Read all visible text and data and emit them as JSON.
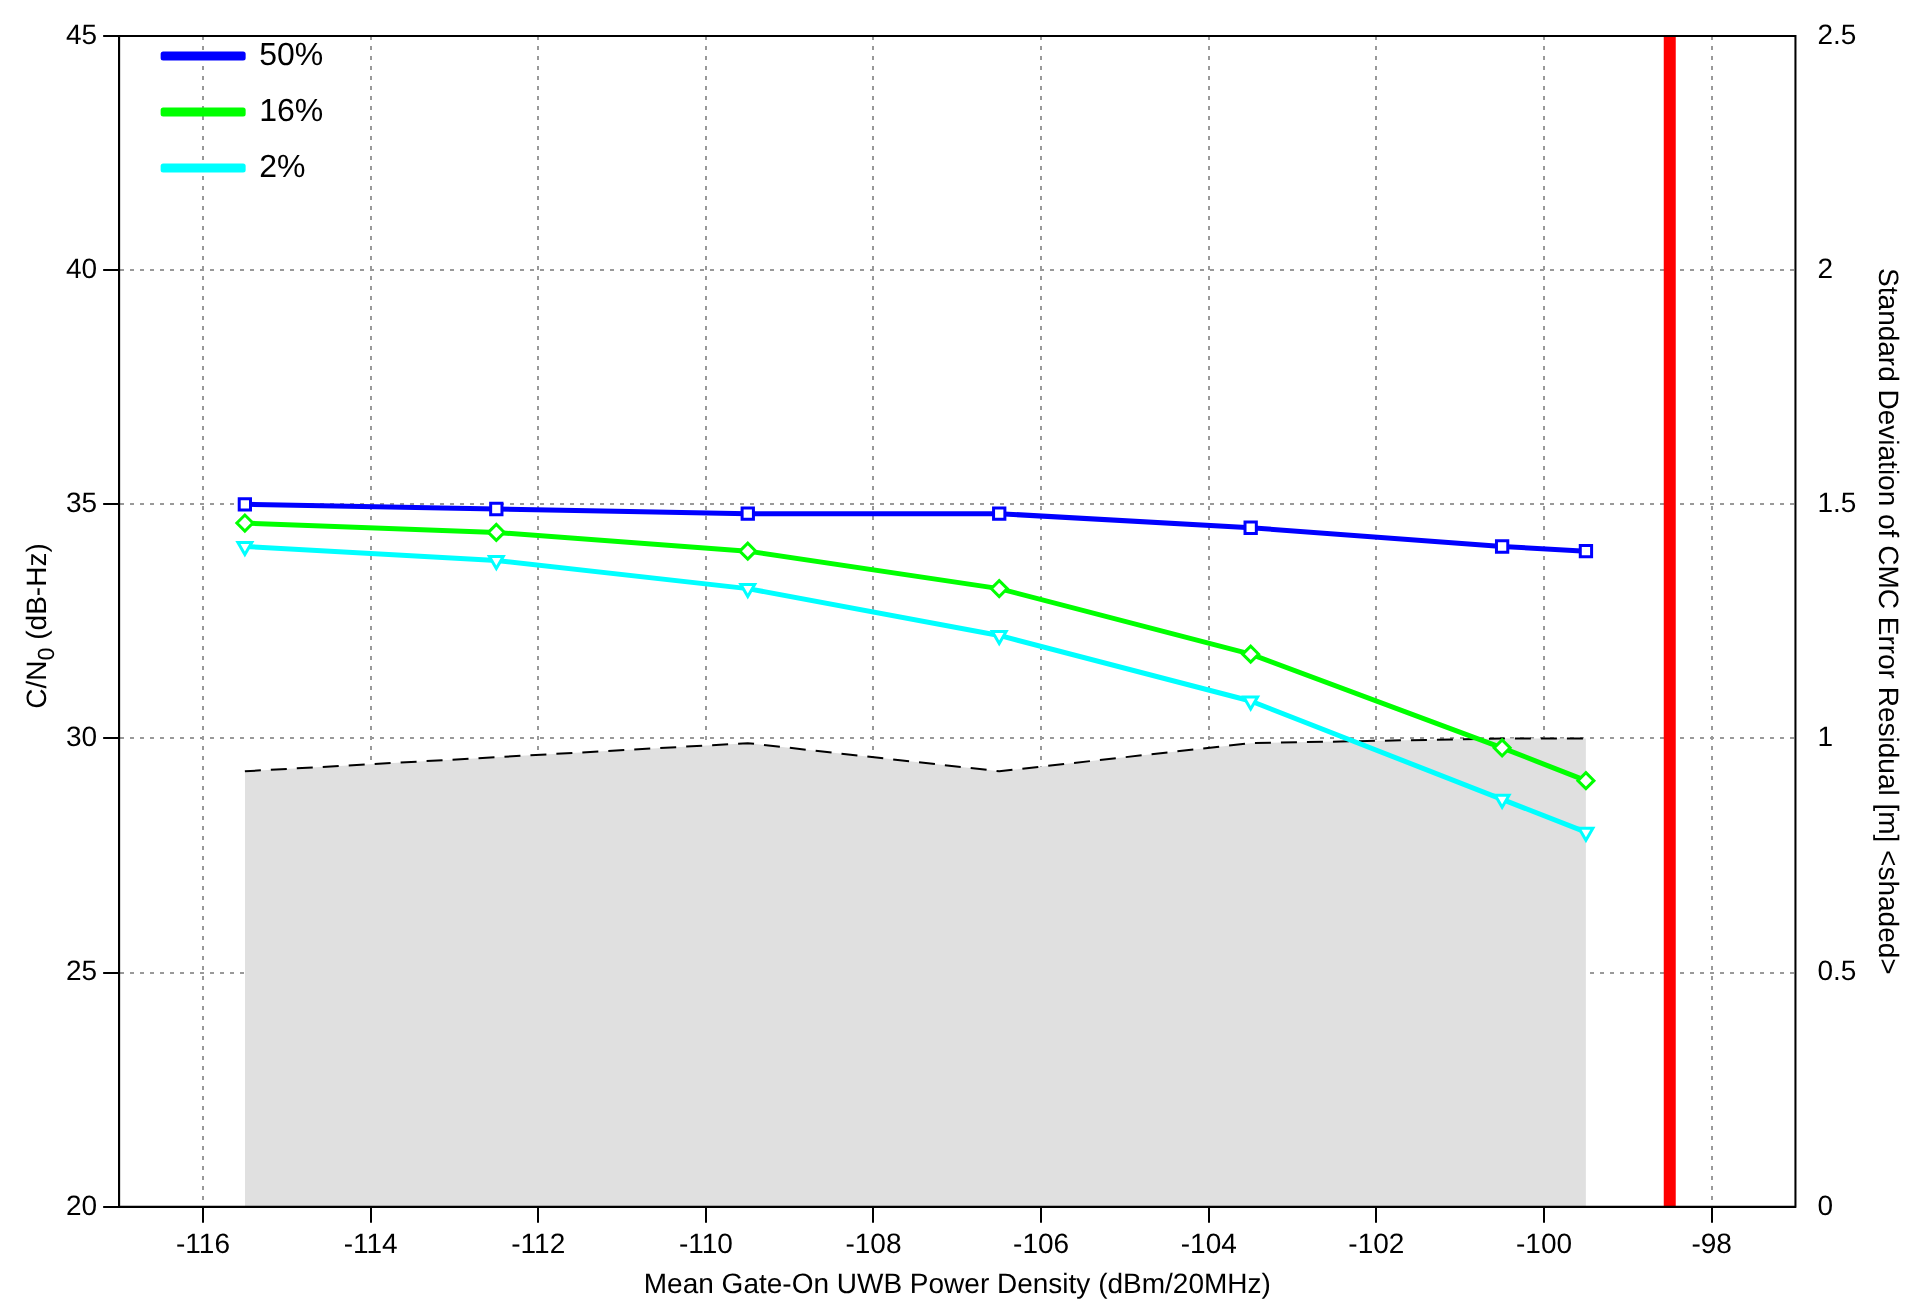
{
  "chart_data": {
    "type": "line",
    "xlabel": "Mean Gate-On UWB Power Density (dBm/20MHz)",
    "ylabel": "C/N$_{0}$ (dB-Hz)",
    "y2label": "Standard Deviation of CMC Error Residual [m] <shaded>",
    "x": [
      -115.5,
      -112.5,
      -109.5,
      -106.5,
      -103.5,
      -100.5,
      -99.5
    ],
    "series": [
      {
        "name": "50%",
        "color": "#0000ff",
        "marker": "square",
        "values": [
          35.0,
          34.9,
          34.8,
          34.8,
          34.5,
          34.1,
          34.0
        ]
      },
      {
        "name": "16%",
        "color": "#00ff00",
        "marker": "diamond",
        "values": [
          34.6,
          34.4,
          34.0,
          33.2,
          31.8,
          29.8,
          29.1
        ]
      },
      {
        "name": "2%",
        "color": "#00ffff",
        "marker": "triangle",
        "values": [
          34.1,
          33.8,
          33.2,
          32.2,
          30.8,
          28.7,
          28.0
        ]
      },
      {
        "type": "area",
        "axis": "y2",
        "color": "#e0e0e0",
        "line_style": "dashed",
        "values": [
          0.93,
          0.96,
          0.99,
          0.93,
          0.99,
          1.0,
          1.0
        ]
      }
    ],
    "xlim": [
      -117,
      -97
    ],
    "xticks": [
      -116,
      -114,
      -112,
      -110,
      -108,
      -106,
      -104,
      -102,
      -100,
      -98
    ],
    "ylim": [
      20,
      45
    ],
    "yticks": [
      20,
      25,
      30,
      35,
      40,
      45
    ],
    "y2lim": [
      0,
      2.5
    ],
    "y2ticks": [
      0,
      0.5,
      1,
      1.5,
      2,
      2.5
    ],
    "ref_lines": [
      {
        "axis": "x",
        "value": -98.5,
        "color": "#ff0000"
      }
    ],
    "grid": true,
    "legend": "top left"
  }
}
